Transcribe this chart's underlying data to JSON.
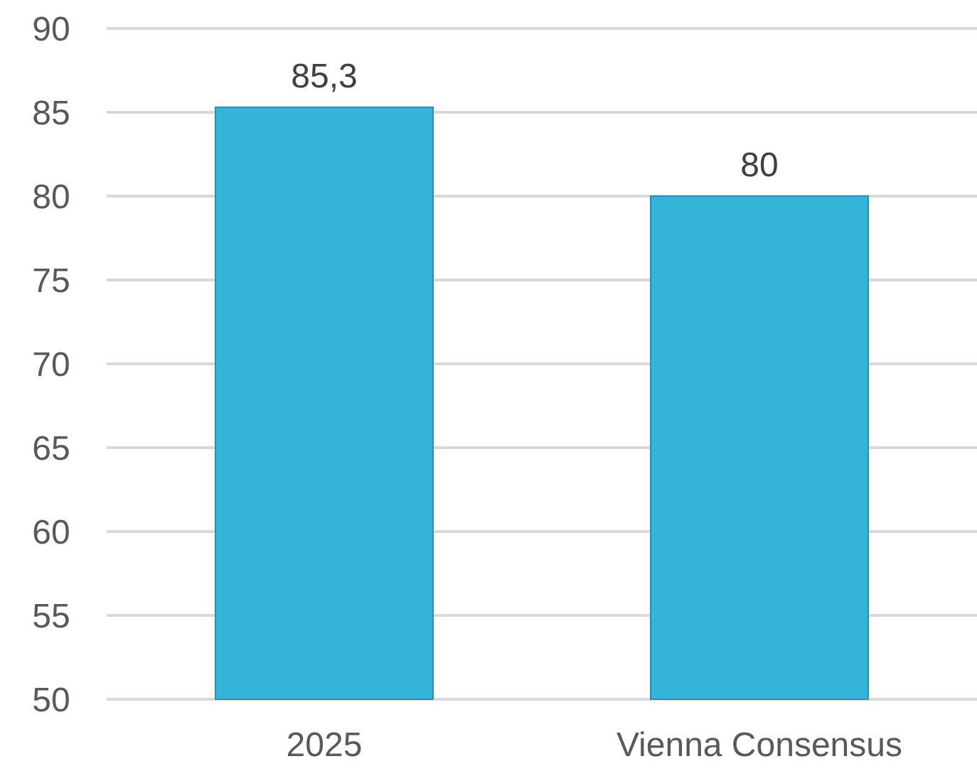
{
  "chart_data": {
    "type": "bar",
    "categories": [
      "2025",
      "Vienna Consensus"
    ],
    "values": [
      85.3,
      80
    ],
    "value_labels": [
      "85,3",
      "80"
    ],
    "color": "#35b4d9",
    "ylim": [
      50,
      90
    ],
    "yticks": [
      50,
      55,
      60,
      65,
      70,
      75,
      80,
      85,
      90
    ],
    "grid": "y"
  }
}
